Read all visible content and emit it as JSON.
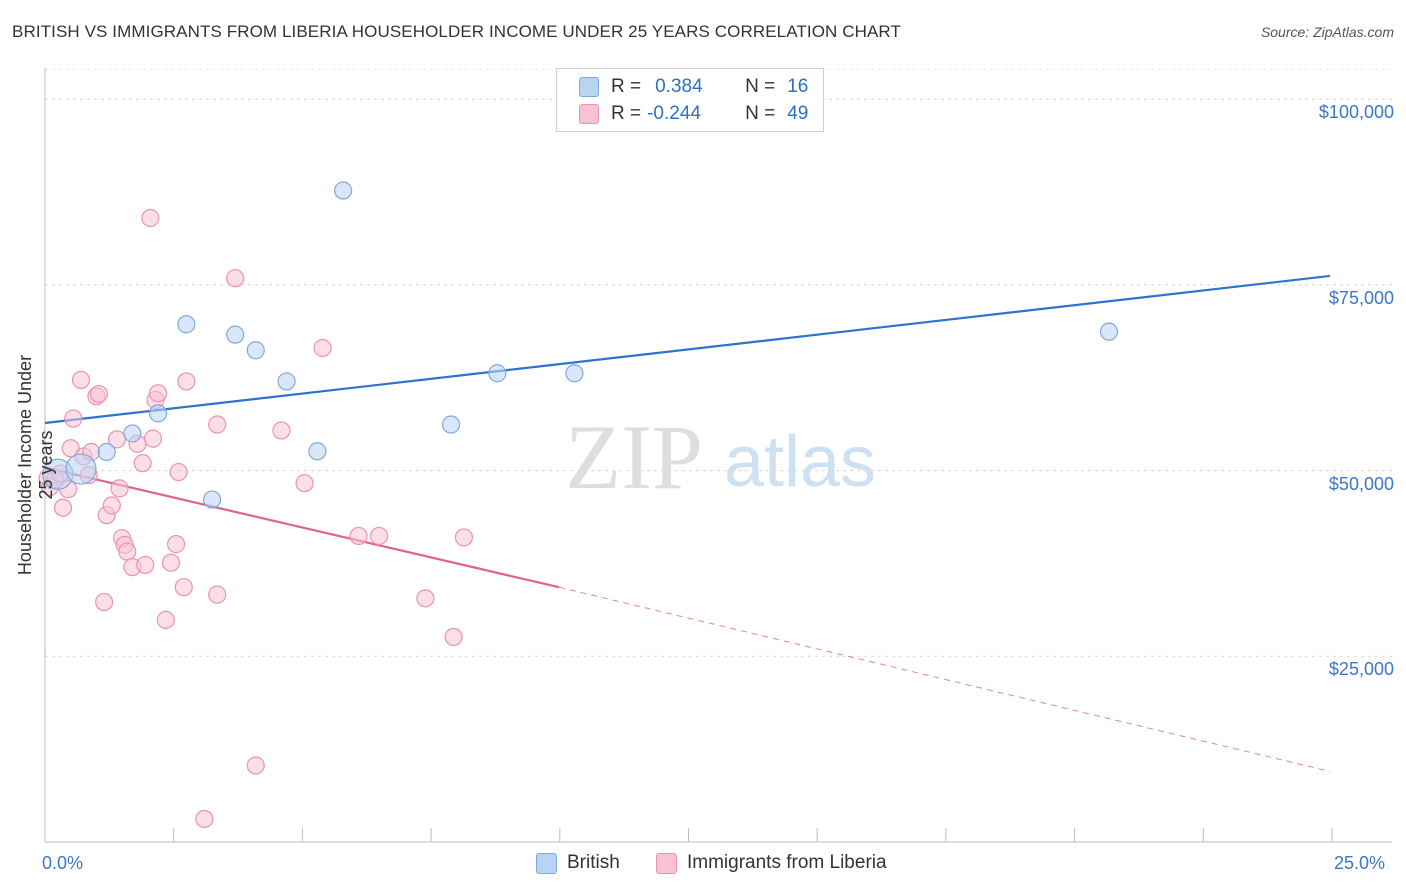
{
  "header": {
    "title": "BRITISH VS IMMIGRANTS FROM LIBERIA HOUSEHOLDER INCOME UNDER 25 YEARS CORRELATION CHART",
    "source": "Source: ZipAtlas.com"
  },
  "watermark": {
    "zip": "ZIP",
    "atlas": "atlas"
  },
  "legend": {
    "british": {
      "r_label": "R =",
      "r_value": "0.384",
      "n_label": "N =",
      "n_value": "16"
    },
    "liberia": {
      "r_label": "R =",
      "r_value": "-0.244",
      "n_label": "N =",
      "n_value": "49"
    }
  },
  "colors": {
    "british_fill": "#b9d3f2",
    "british_stroke": "#7fa9dc",
    "british_line": "#2e73d0",
    "liberia_fill": "#f8c2d4",
    "liberia_stroke": "#eb93b2",
    "liberia_line": "#e2628e",
    "tick_text": "#3b78c8",
    "grid": "#d8d8d8"
  },
  "chart_data": {
    "type": "scatter",
    "title": "BRITISH VS IMMIGRANTS FROM LIBERIA HOUSEHOLDER INCOME UNDER 25 YEARS CORRELATION CHART",
    "xlabel": "",
    "ylabel": "Householder Income Under 25 years",
    "xlim": [
      0,
      25
    ],
    "ylim": [
      0,
      105000
    ],
    "x_tick_labels": [
      "0.0%",
      "25.0%"
    ],
    "y_ticks": [
      {
        "value": 100000,
        "label": "$100,000"
      },
      {
        "value": 75000,
        "label": "$75,000"
      },
      {
        "value": 50000,
        "label": "$50,000"
      },
      {
        "value": 25000,
        "label": "$25,000"
      }
    ],
    "series": [
      {
        "name": "British",
        "r": 0.384,
        "n": 16,
        "points": [
          [
            0.25,
            49500,
            "large"
          ],
          [
            0.7,
            50200,
            "large"
          ],
          [
            1.2,
            52500
          ],
          [
            1.7,
            55000
          ],
          [
            2.2,
            57700
          ],
          [
            2.75,
            69700
          ],
          [
            3.25,
            46100
          ],
          [
            3.7,
            68300
          ],
          [
            4.1,
            66200
          ],
          [
            4.7,
            62000
          ],
          [
            5.3,
            52600
          ],
          [
            5.8,
            87700
          ],
          [
            7.9,
            56200
          ],
          [
            8.8,
            63100
          ],
          [
            10.3,
            63100
          ],
          [
            20.7,
            68700
          ]
        ],
        "trend": {
          "x1": 0,
          "y1": 56400,
          "x2": 25,
          "y2": 76200
        }
      },
      {
        "name": "Immigrants from Liberia",
        "r": -0.244,
        "n": 49,
        "points": [
          [
            0.05,
            49000
          ],
          [
            0.1,
            47800
          ],
          [
            0.2,
            48800
          ],
          [
            0.3,
            49600
          ],
          [
            0.35,
            45000
          ],
          [
            0.45,
            47500
          ],
          [
            0.5,
            53000
          ],
          [
            0.55,
            57000
          ],
          [
            0.7,
            62200
          ],
          [
            0.75,
            51900
          ],
          [
            0.85,
            49400
          ],
          [
            0.9,
            52500
          ],
          [
            1.0,
            60000
          ],
          [
            1.05,
            60300
          ],
          [
            1.15,
            32300
          ],
          [
            1.2,
            44000
          ],
          [
            1.3,
            45300
          ],
          [
            1.4,
            54200
          ],
          [
            1.45,
            47600
          ],
          [
            1.5,
            40900
          ],
          [
            1.55,
            40000
          ],
          [
            1.6,
            39100
          ],
          [
            1.7,
            37000
          ],
          [
            1.8,
            53600
          ],
          [
            1.9,
            51000
          ],
          [
            1.95,
            37300
          ],
          [
            2.05,
            84000
          ],
          [
            2.1,
            54300
          ],
          [
            2.15,
            59500
          ],
          [
            2.2,
            60400
          ],
          [
            2.35,
            29900
          ],
          [
            2.45,
            37600
          ],
          [
            2.55,
            40100
          ],
          [
            2.6,
            49800
          ],
          [
            2.7,
            34300
          ],
          [
            2.75,
            62000
          ],
          [
            3.1,
            3100
          ],
          [
            3.35,
            33300
          ],
          [
            3.35,
            56200
          ],
          [
            3.7,
            75900
          ],
          [
            4.1,
            10300
          ],
          [
            4.6,
            55400
          ],
          [
            5.05,
            48300
          ],
          [
            5.4,
            66500
          ],
          [
            6.1,
            41200
          ],
          [
            6.5,
            41200
          ],
          [
            7.4,
            32800
          ],
          [
            7.95,
            27600
          ],
          [
            8.15,
            41000
          ]
        ],
        "trend": {
          "x1": 0,
          "y1": 50400,
          "x2": 10,
          "y2": 34300
        },
        "trend_extension": {
          "x1": 10,
          "y1": 34300,
          "x2": 25,
          "y2": 9500
        }
      }
    ]
  },
  "bottom_legend": {
    "british": "British",
    "liberia": "Immigrants from Liberia"
  }
}
